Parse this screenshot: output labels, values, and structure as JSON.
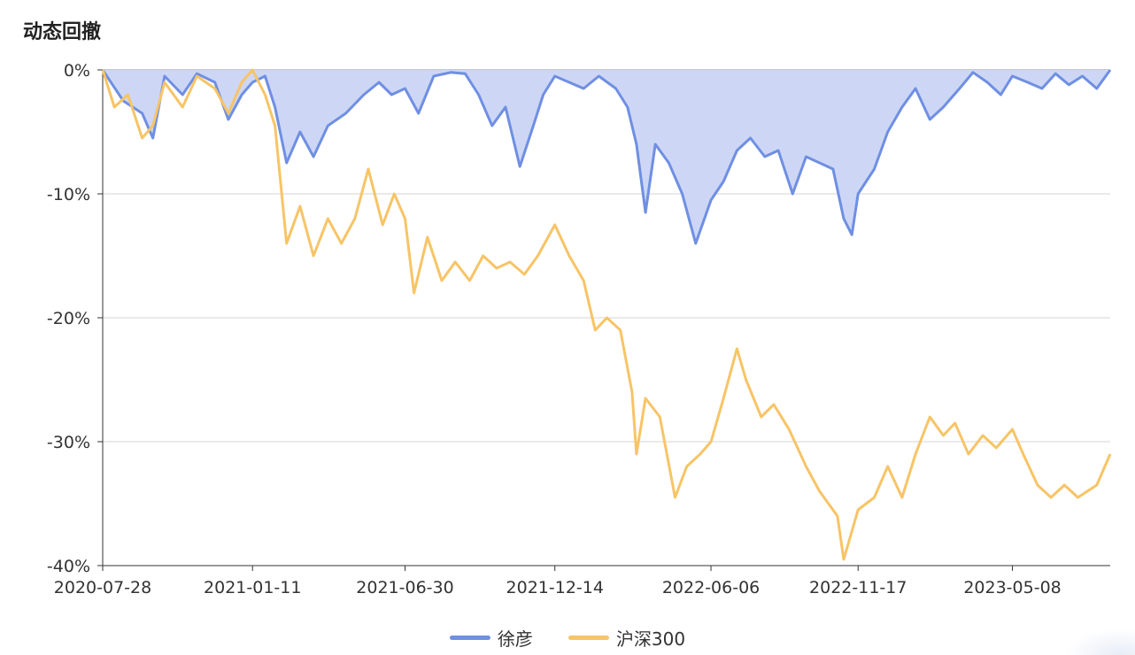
{
  "title": "动态回撤",
  "chart_data": {
    "type": "line",
    "title": "动态回撤",
    "x_ticks": [
      "2020-07-28",
      "2021-01-11",
      "2021-06-30",
      "2021-12-14",
      "2022-06-06",
      "2022-11-17",
      "2023-05-08"
    ],
    "y_ticks": [
      "0%",
      "-10%",
      "-20%",
      "-30%",
      "-40%"
    ],
    "ylim": [
      -40,
      0
    ],
    "grid": true,
    "legend_position": "bottom-center",
    "series": [
      {
        "name": "徐彦",
        "color": "#6f8fe3",
        "fill": "#cdd7f5",
        "area": true,
        "points": [
          [
            "2020-07-28",
            0
          ],
          [
            "2020-08-20",
            -2.5
          ],
          [
            "2020-09-10",
            -3.5
          ],
          [
            "2020-09-22",
            -5.5
          ],
          [
            "2020-10-05",
            -0.5
          ],
          [
            "2020-10-25",
            -2
          ],
          [
            "2020-11-10",
            -0.3
          ],
          [
            "2020-11-30",
            -1
          ],
          [
            "2020-12-15",
            -4
          ],
          [
            "2020-12-30",
            -2
          ],
          [
            "2021-01-11",
            -1
          ],
          [
            "2021-01-25",
            -0.5
          ],
          [
            "2021-02-05",
            -3
          ],
          [
            "2021-02-18",
            -7.5
          ],
          [
            "2021-03-05",
            -5
          ],
          [
            "2021-03-20",
            -7
          ],
          [
            "2021-04-05",
            -4.5
          ],
          [
            "2021-04-25",
            -3.5
          ],
          [
            "2021-05-15",
            -2
          ],
          [
            "2021-06-01",
            -1
          ],
          [
            "2021-06-15",
            -2
          ],
          [
            "2021-06-30",
            -1.5
          ],
          [
            "2021-07-15",
            -3.5
          ],
          [
            "2021-08-01",
            -0.5
          ],
          [
            "2021-08-20",
            -0.2
          ],
          [
            "2021-09-05",
            -0.3
          ],
          [
            "2021-09-20",
            -2
          ],
          [
            "2021-10-05",
            -4.5
          ],
          [
            "2021-10-20",
            -3
          ],
          [
            "2021-11-05",
            -7.8
          ],
          [
            "2021-11-20",
            -4.5
          ],
          [
            "2021-12-01",
            -2
          ],
          [
            "2021-12-14",
            -0.5
          ],
          [
            "2021-12-30",
            -1
          ],
          [
            "2022-01-15",
            -1.5
          ],
          [
            "2022-02-01",
            -0.5
          ],
          [
            "2022-02-20",
            -1.5
          ],
          [
            "2022-03-05",
            -3
          ],
          [
            "2022-03-15",
            -6
          ],
          [
            "2022-03-25",
            -11.5
          ],
          [
            "2022-04-05",
            -6
          ],
          [
            "2022-04-20",
            -7.5
          ],
          [
            "2022-05-05",
            -10
          ],
          [
            "2022-05-20",
            -14
          ],
          [
            "2022-06-06",
            -10.5
          ],
          [
            "2022-06-20",
            -9
          ],
          [
            "2022-07-05",
            -6.5
          ],
          [
            "2022-07-20",
            -5.5
          ],
          [
            "2022-08-05",
            -7
          ],
          [
            "2022-08-20",
            -6.5
          ],
          [
            "2022-09-05",
            -10
          ],
          [
            "2022-09-20",
            -7
          ],
          [
            "2022-10-05",
            -7.5
          ],
          [
            "2022-10-20",
            -8
          ],
          [
            "2022-11-01",
            -12
          ],
          [
            "2022-11-10",
            -13.3
          ],
          [
            "2022-11-17",
            -10
          ],
          [
            "2022-12-05",
            -8
          ],
          [
            "2022-12-20",
            -5
          ],
          [
            "2023-01-05",
            -3
          ],
          [
            "2023-01-20",
            -1.5
          ],
          [
            "2023-02-05",
            -4
          ],
          [
            "2023-02-20",
            -3
          ],
          [
            "2023-03-10",
            -1.5
          ],
          [
            "2023-03-25",
            -0.2
          ],
          [
            "2023-04-10",
            -1
          ],
          [
            "2023-04-25",
            -2
          ],
          [
            "2023-05-08",
            -0.5
          ],
          [
            "2023-05-25",
            -1
          ],
          [
            "2023-06-10",
            -1.5
          ],
          [
            "2023-06-25",
            -0.3
          ],
          [
            "2023-07-10",
            -1.2
          ],
          [
            "2023-07-25",
            -0.5
          ],
          [
            "2023-08-10",
            -1.5
          ],
          [
            "2023-08-25",
            0
          ]
        ]
      },
      {
        "name": "沪深300",
        "color": "#f7c466",
        "area": false,
        "points": [
          [
            "2020-07-28",
            0
          ],
          [
            "2020-08-10",
            -3
          ],
          [
            "2020-08-25",
            -2
          ],
          [
            "2020-09-10",
            -5.5
          ],
          [
            "2020-09-22",
            -4.5
          ],
          [
            "2020-10-05",
            -1
          ],
          [
            "2020-10-25",
            -3
          ],
          [
            "2020-11-10",
            -0.5
          ],
          [
            "2020-11-30",
            -1.5
          ],
          [
            "2020-12-15",
            -3.5
          ],
          [
            "2020-12-30",
            -1
          ],
          [
            "2021-01-11",
            0
          ],
          [
            "2021-01-25",
            -2
          ],
          [
            "2021-02-05",
            -4.5
          ],
          [
            "2021-02-18",
            -14
          ],
          [
            "2021-03-05",
            -11
          ],
          [
            "2021-03-20",
            -15
          ],
          [
            "2021-04-05",
            -12
          ],
          [
            "2021-04-20",
            -14
          ],
          [
            "2021-05-05",
            -12
          ],
          [
            "2021-05-20",
            -8
          ],
          [
            "2021-06-05",
            -12.5
          ],
          [
            "2021-06-18",
            -10
          ],
          [
            "2021-06-30",
            -12
          ],
          [
            "2021-07-10",
            -18
          ],
          [
            "2021-07-25",
            -13.5
          ],
          [
            "2021-08-10",
            -17
          ],
          [
            "2021-08-25",
            -15.5
          ],
          [
            "2021-09-10",
            -17
          ],
          [
            "2021-09-25",
            -15
          ],
          [
            "2021-10-10",
            -16
          ],
          [
            "2021-10-25",
            -15.5
          ],
          [
            "2021-11-10",
            -16.5
          ],
          [
            "2021-11-25",
            -15
          ],
          [
            "2021-12-14",
            -12.5
          ],
          [
            "2021-12-30",
            -15
          ],
          [
            "2022-01-15",
            -17
          ],
          [
            "2022-01-28",
            -21
          ],
          [
            "2022-02-10",
            -20
          ],
          [
            "2022-02-25",
            -21
          ],
          [
            "2022-03-10",
            -26
          ],
          [
            "2022-03-15",
            -31
          ],
          [
            "2022-03-25",
            -26.5
          ],
          [
            "2022-04-10",
            -28
          ],
          [
            "2022-04-27",
            -34.5
          ],
          [
            "2022-05-10",
            -32
          ],
          [
            "2022-05-25",
            -31
          ],
          [
            "2022-06-06",
            -30
          ],
          [
            "2022-06-20",
            -26.5
          ],
          [
            "2022-07-05",
            -22.5
          ],
          [
            "2022-07-15",
            -25
          ],
          [
            "2022-08-01",
            -28
          ],
          [
            "2022-08-15",
            -27
          ],
          [
            "2022-09-01",
            -29
          ],
          [
            "2022-09-20",
            -32
          ],
          [
            "2022-10-05",
            -34
          ],
          [
            "2022-10-25",
            -36
          ],
          [
            "2022-11-01",
            -39.5
          ],
          [
            "2022-11-17",
            -35.5
          ],
          [
            "2022-12-05",
            -34.5
          ],
          [
            "2022-12-20",
            -32
          ],
          [
            "2023-01-05",
            -34.5
          ],
          [
            "2023-01-20",
            -31
          ],
          [
            "2023-02-05",
            -28
          ],
          [
            "2023-02-20",
            -29.5
          ],
          [
            "2023-03-05",
            -28.5
          ],
          [
            "2023-03-20",
            -31
          ],
          [
            "2023-04-05",
            -29.5
          ],
          [
            "2023-04-20",
            -30.5
          ],
          [
            "2023-05-08",
            -29
          ],
          [
            "2023-05-20",
            -31
          ],
          [
            "2023-06-05",
            -33.5
          ],
          [
            "2023-06-20",
            -34.5
          ],
          [
            "2023-07-05",
            -33.5
          ],
          [
            "2023-07-20",
            -34.5
          ],
          [
            "2023-08-10",
            -33.5
          ],
          [
            "2023-08-25",
            -31
          ]
        ]
      }
    ]
  }
}
